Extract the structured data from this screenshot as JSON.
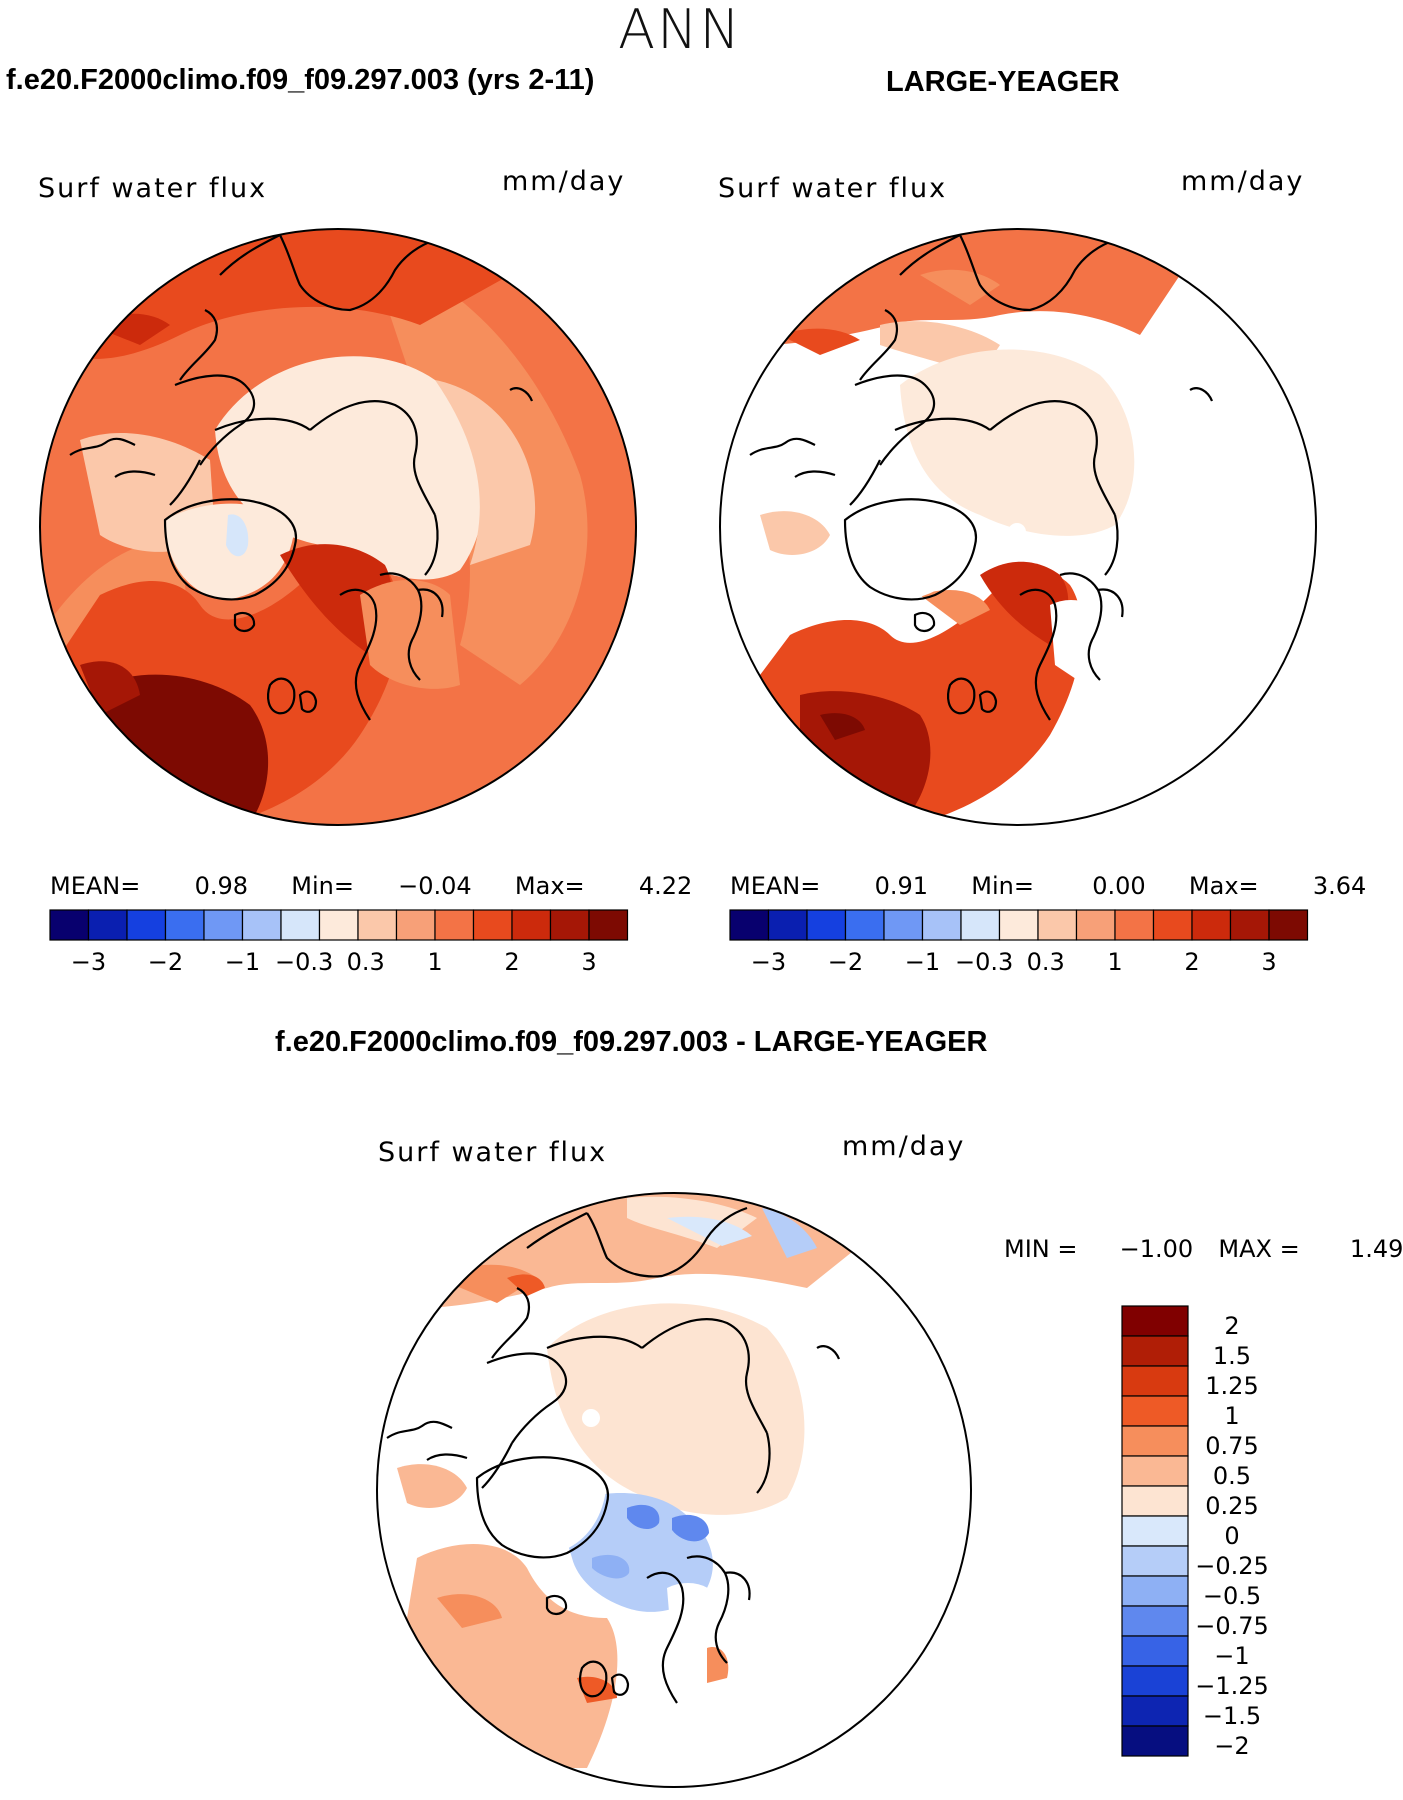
{
  "title": "ANN",
  "panels": [
    {
      "id": "top-left",
      "case_title": "f.e20.F2000climo.f09_f09.297.003 (yrs 2-11)",
      "variable": "Surf water flux",
      "units": "mm/day",
      "stats": {
        "mean_label": "MEAN=",
        "mean": "0.98",
        "min_label": "Min=",
        "min": "−0.04",
        "max_label": "Max=",
        "max": "4.22"
      }
    },
    {
      "id": "top-right",
      "case_title": "LARGE-YEAGER",
      "variable": "Surf water flux",
      "units": "mm/day",
      "stats": {
        "mean_label": "MEAN=",
        "mean": "0.91",
        "min_label": "Min=",
        "min": "0.00",
        "max_label": "Max=",
        "max": "3.64"
      }
    },
    {
      "id": "bottom",
      "case_title": "f.e20.F2000climo.f09_f09.297.003 - LARGE-YEAGER",
      "variable": "Surf water flux",
      "units": "mm/day",
      "stats": {
        "min_label": "MIN =",
        "min": "−1.00",
        "max_label": "MAX =",
        "max": "1.49"
      }
    }
  ],
  "colorbar_abs": {
    "tick_labels": [
      "−3",
      "−2",
      "−1",
      "−0.3",
      "0.3",
      "1",
      "2",
      "3"
    ],
    "colors": [
      "#08006e",
      "#0a1fb0",
      "#1540e0",
      "#3a6ef0",
      "#6f98f5",
      "#a7c2f8",
      "#d6e6fa",
      "#fdeadb",
      "#fbc8aa",
      "#f7a078",
      "#f37346",
      "#e84a1e",
      "#cc2a0c",
      "#a51706",
      "#7d0a02"
    ]
  },
  "colorbar_diff": {
    "tick_labels": [
      "2",
      "1.5",
      "1.25",
      "1",
      "0.75",
      "0.5",
      "0.25",
      "0",
      "−0.25",
      "−0.5",
      "−0.75",
      "−1",
      "−1.25",
      "−1.5",
      "−2"
    ],
    "colors": [
      "#800000",
      "#b01e06",
      "#d83a10",
      "#ee5a26",
      "#f68e5c",
      "#fab894",
      "#fde4d2",
      "#d9e8fb",
      "#b5cdf8",
      "#8eb0f4",
      "#5f88ee",
      "#3763e6",
      "#1a42d6",
      "#0d25b2",
      "#060e80"
    ]
  }
}
